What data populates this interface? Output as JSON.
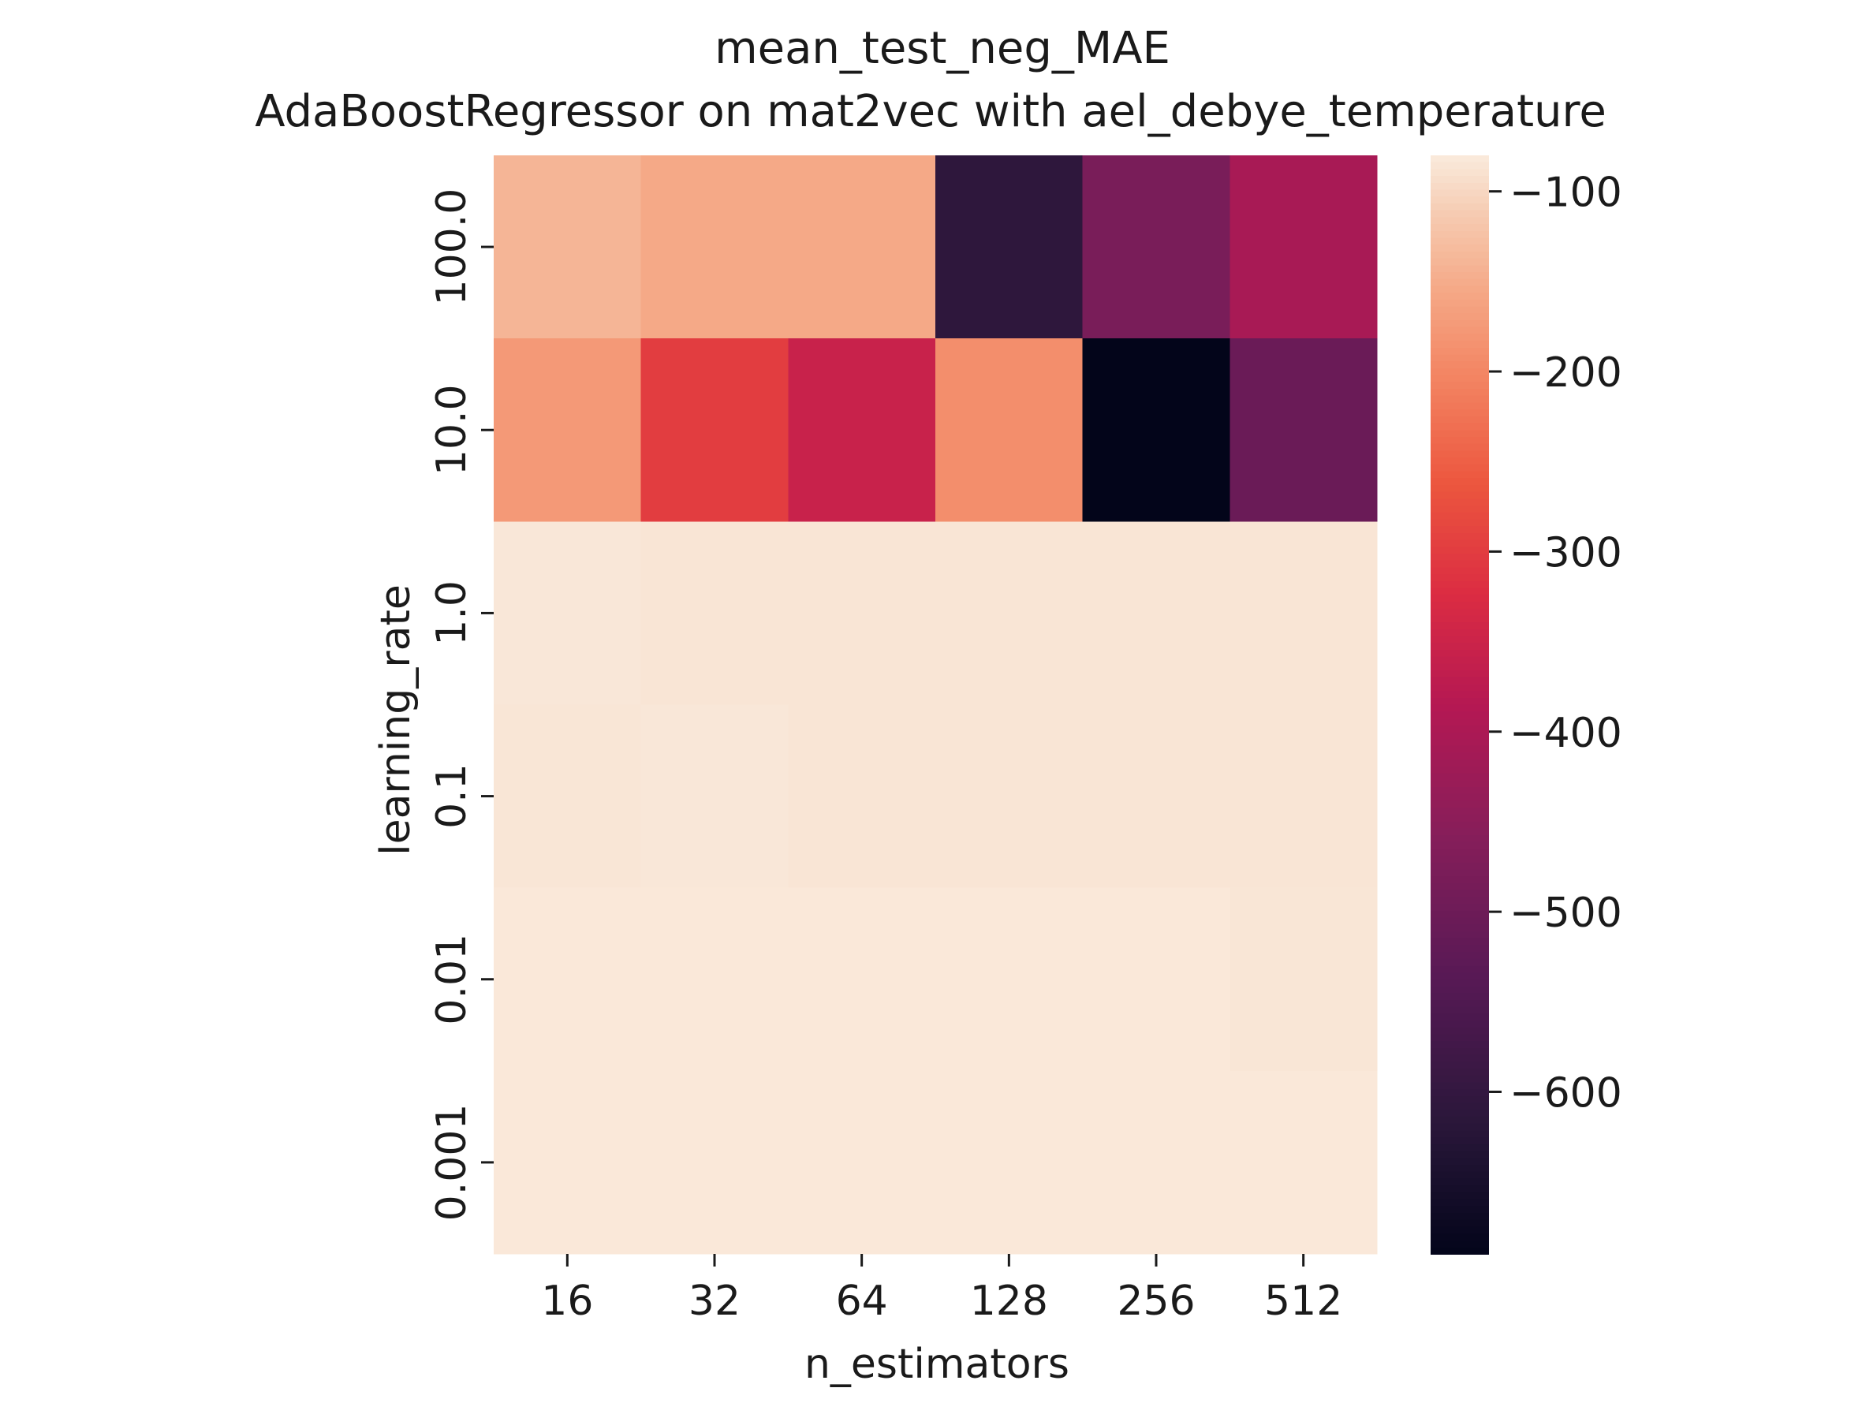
{
  "chart_data": {
    "type": "heatmap",
    "title": "mean_test_neg_MAE",
    "subtitle": "AdaBoostRegressor on mat2vec with ael_debye_temperature",
    "xlabel": "n_estimators",
    "ylabel": "learning_rate",
    "x_categories": [
      "16",
      "32",
      "64",
      "128",
      "256",
      "512"
    ],
    "y_categories": [
      "100.0",
      "10.0",
      "1.0",
      "0.1",
      "0.01",
      "0.001"
    ],
    "values": [
      [
        -140,
        -155,
        -155,
        -610,
        -480,
        -405
      ],
      [
        -175,
        -300,
        -355,
        -190,
        -690,
        -505
      ],
      [
        -84,
        -86,
        -86,
        -86,
        -86,
        -86
      ],
      [
        -85,
        -84,
        -86,
        -86,
        -86,
        -86
      ],
      [
        -83,
        -83,
        -83,
        -83,
        -83,
        -85
      ],
      [
        -83,
        -83,
        -83,
        -83,
        -83,
        -83
      ]
    ],
    "colorbar": {
      "vmin": -690,
      "vmax": -80,
      "ticks": [
        -100,
        -200,
        -300,
        -400,
        -500,
        -600
      ],
      "tick_labels": [
        "−100",
        "−200",
        "−300",
        "−400",
        "−500",
        "−600"
      ]
    },
    "colormap": "rocket",
    "grid": false
  }
}
